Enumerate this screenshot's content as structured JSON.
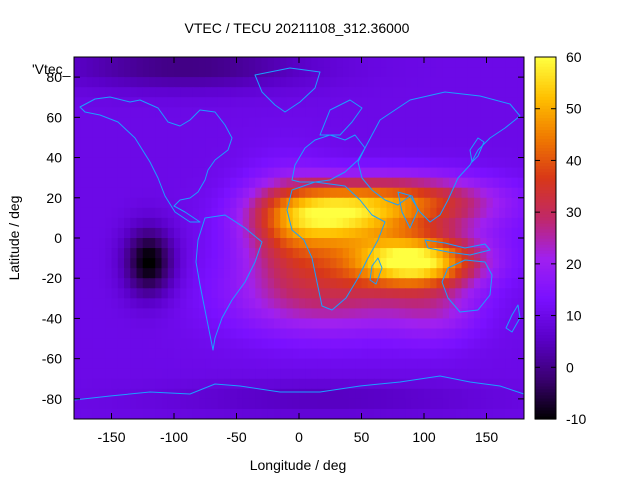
{
  "chart_data": {
    "type": "heatmap",
    "title": "VTEC / TECU 20211108_312.36000",
    "xlabel": "Longitude / deg",
    "ylabel": "Latitude / deg",
    "key_label": "'Vtec_",
    "xlim": [
      -180,
      180
    ],
    "ylim": [
      -90,
      90
    ],
    "x_ticks": [
      -150,
      -100,
      -50,
      0,
      50,
      100,
      150
    ],
    "y_ticks": [
      -80,
      -60,
      -40,
      -20,
      0,
      20,
      40,
      60,
      80
    ],
    "colorbar": {
      "range": [
        -10,
        60
      ],
      "ticks": [
        -10,
        0,
        10,
        20,
        30,
        40,
        50,
        60
      ],
      "palette": [
        "#000000",
        "#3a0070",
        "#5a00c8",
        "#7a10ff",
        "#a020f0",
        "#c02868",
        "#d83818",
        "#f07a00",
        "#ffc000",
        "#ffff40"
      ]
    },
    "grid": false,
    "coastline_color": "#1aa0ff",
    "background_tec": 10,
    "features": [
      {
        "lon": 95,
        "lat": -12,
        "tec": 48,
        "slon": 32,
        "slat": 8
      },
      {
        "lon": 20,
        "lat": 12,
        "tec": 42,
        "slon": 35,
        "slat": 10
      },
      {
        "lon": 85,
        "lat": 18,
        "tec": 40,
        "slon": 50,
        "slat": 9
      },
      {
        "lon": 60,
        "lat": -5,
        "tec": 34,
        "slon": 55,
        "slat": 14
      },
      {
        "lon": 25,
        "lat": -30,
        "tec": 27,
        "slon": 55,
        "slat": 14
      },
      {
        "lon": -10,
        "lat": 5,
        "tec": 24,
        "slon": 25,
        "slat": 20
      },
      {
        "lon": 110,
        "lat": -35,
        "tec": 20,
        "slon": 25,
        "slat": 12
      },
      {
        "lon": -120,
        "lat": -12,
        "tec": -13,
        "slon": 14,
        "slat": 12
      },
      {
        "lon": -90,
        "lat": 85,
        "tec": -2,
        "slon": 70,
        "slat": 8
      },
      {
        "lon": 20,
        "lat": -80,
        "tec": 4,
        "slon": 90,
        "slat": 6
      }
    ]
  }
}
